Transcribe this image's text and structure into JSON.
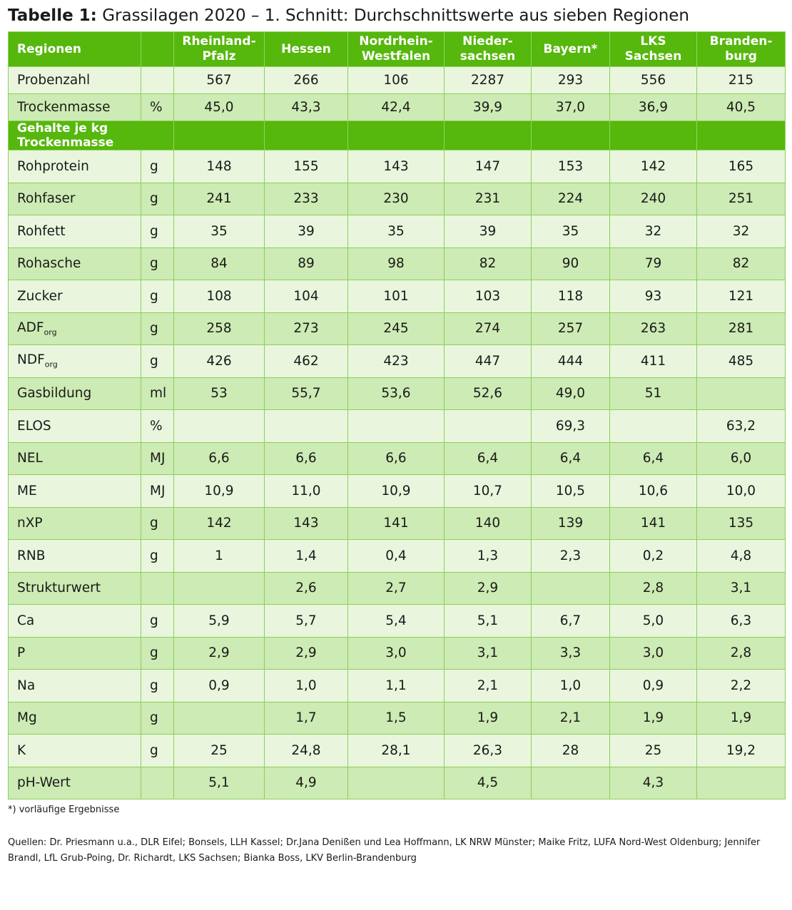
{
  "title": {
    "prefix": "Tabelle 1:",
    "text": "Grassilagen 2020 – 1. Schnitt: Durchschnittswerte aus sieben Regionen"
  },
  "table": {
    "header": {
      "label": "Regionen",
      "unit": "",
      "regions": [
        [
          "Rheinland-",
          "Pfalz"
        ],
        [
          "Hessen"
        ],
        [
          "Nordrhein-",
          "Westfalen"
        ],
        [
          "Nieder-",
          "sachsen"
        ],
        [
          "Bayern*"
        ],
        [
          "LKS",
          "Sachsen"
        ],
        [
          "Branden-",
          "burg"
        ]
      ]
    },
    "top_rows": [
      {
        "label": "Probenzahl",
        "sub": "",
        "unit": "",
        "values": [
          "567",
          "266",
          "106",
          "2287",
          "293",
          "556",
          "215"
        ]
      },
      {
        "label": "Trockenmasse",
        "sub": "",
        "unit": "%",
        "values": [
          "45,0",
          "43,3",
          "42,4",
          "39,9",
          "37,0",
          "36,9",
          "40,5"
        ]
      }
    ],
    "section_label": "Gehalte je kg Trockenmasse",
    "rows": [
      {
        "label": "Rohprotein",
        "sub": "",
        "unit": "g",
        "values": [
          "148",
          "155",
          "143",
          "147",
          "153",
          "142",
          "165"
        ]
      },
      {
        "label": "Rohfaser",
        "sub": "",
        "unit": "g",
        "values": [
          "241",
          "233",
          "230",
          "231",
          "224",
          "240",
          "251"
        ]
      },
      {
        "label": "Rohfett",
        "sub": "",
        "unit": "g",
        "values": [
          "35",
          "39",
          "35",
          "39",
          "35",
          "32",
          "32"
        ]
      },
      {
        "label": "Rohasche",
        "sub": "",
        "unit": "g",
        "values": [
          "84",
          "89",
          "98",
          "82",
          "90",
          "79",
          "82"
        ]
      },
      {
        "label": "Zucker",
        "sub": "",
        "unit": "g",
        "values": [
          "108",
          "104",
          "101",
          "103",
          "118",
          "93",
          "121"
        ]
      },
      {
        "label": "ADF",
        "sub": "org",
        "unit": "g",
        "values": [
          "258",
          "273",
          "245",
          "274",
          "257",
          "263",
          "281"
        ]
      },
      {
        "label": "NDF",
        "sub": "org",
        "unit": "g",
        "values": [
          "426",
          "462",
          "423",
          "447",
          "444",
          "411",
          "485"
        ]
      },
      {
        "label": "Gasbildung",
        "sub": "",
        "unit": "ml",
        "values": [
          "53",
          "55,7",
          "53,6",
          "52,6",
          "49,0",
          "51",
          ""
        ]
      },
      {
        "label": "ELOS",
        "sub": "",
        "unit": "%",
        "values": [
          "",
          "",
          "",
          "",
          "69,3",
          "",
          "63,2"
        ]
      },
      {
        "label": "NEL",
        "sub": "",
        "unit": "MJ",
        "values": [
          "6,6",
          "6,6",
          "6,6",
          "6,4",
          "6,4",
          "6,4",
          "6,0"
        ]
      },
      {
        "label": "ME",
        "sub": "",
        "unit": "MJ",
        "values": [
          "10,9",
          "11,0",
          "10,9",
          "10,7",
          "10,5",
          "10,6",
          "10,0"
        ]
      },
      {
        "label": "nXP",
        "sub": "",
        "unit": "g",
        "values": [
          "142",
          "143",
          "141",
          "140",
          "139",
          "141",
          "135"
        ]
      },
      {
        "label": "RNB",
        "sub": "",
        "unit": "g",
        "values": [
          "1",
          "1,4",
          "0,4",
          "1,3",
          "2,3",
          "0,2",
          "4,8"
        ]
      },
      {
        "label": "Strukturwert",
        "sub": "",
        "unit": "",
        "values": [
          "",
          "2,6",
          "2,7",
          "2,9",
          "",
          "2,8",
          "3,1"
        ]
      },
      {
        "label": "Ca",
        "sub": "",
        "unit": "g",
        "values": [
          "5,9",
          "5,7",
          "5,4",
          "5,1",
          "6,7",
          "5,0",
          "6,3"
        ]
      },
      {
        "label": "P",
        "sub": "",
        "unit": "g",
        "values": [
          "2,9",
          "2,9",
          "3,0",
          "3,1",
          "3,3",
          "3,0",
          "2,8"
        ]
      },
      {
        "label": "Na",
        "sub": "",
        "unit": "g",
        "values": [
          "0,9",
          "1,0",
          "1,1",
          "2,1",
          "1,0",
          "0,9",
          "2,2"
        ]
      },
      {
        "label": "Mg",
        "sub": "",
        "unit": "g",
        "values": [
          "",
          "1,7",
          "1,5",
          "1,9",
          "2,1",
          "1,9",
          "1,9"
        ]
      },
      {
        "label": "K",
        "sub": "",
        "unit": "g",
        "values": [
          "25",
          "24,8",
          "28,1",
          "26,3",
          "28",
          "25",
          "19,2"
        ]
      },
      {
        "label": "pH-Wert",
        "sub": "",
        "unit": "",
        "values": [
          "5,1",
          "4,9",
          "",
          "4,5",
          "",
          "4,3",
          ""
        ]
      }
    ]
  },
  "footnote": "*) vorläufige Ergebnisse",
  "sources": "Quellen: Dr. Priesmann u.a., DLR Eifel; Bonsels, LLH Kassel; Dr.Jana Denißen und Lea Hoffmann, LK NRW Münster; Maike Fritz, LUFA Nord-West Oldenburg; Jennifer Brandl, LfL Grub-Poing, Dr. Richardt, LKS Sachsen;  Bianka Boss, LKV Berlin-Brandenburg",
  "colors": {
    "header_green": "#56b70d",
    "row_light": "#e9f6dd",
    "row_dark": "#cdebb4",
    "border": "#8ccf5a"
  }
}
